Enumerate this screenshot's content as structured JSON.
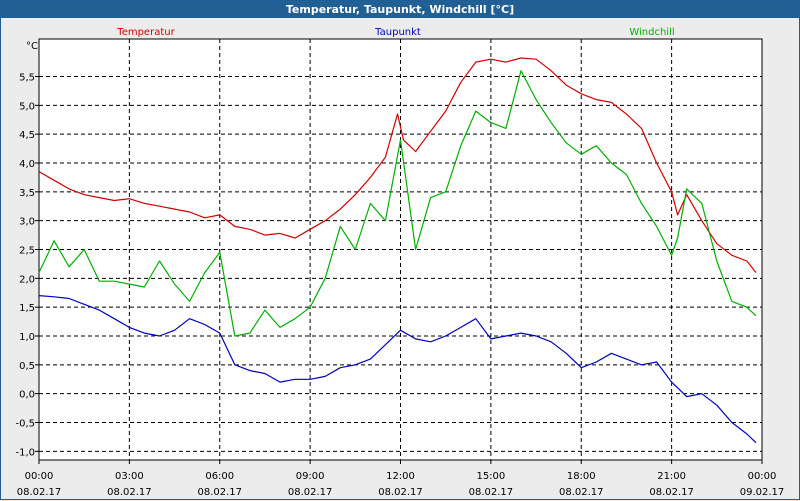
{
  "window": {
    "title": "Temperatur, Taupunkt, Windchill [°C]"
  },
  "colors": {
    "Temperatur": "#d40000",
    "Taupunkt": "#0000c0",
    "Windchill": "#00b000",
    "grid": "#000000",
    "background": "#ececec"
  },
  "chart_data": {
    "type": "line",
    "title": "Temperatur, Taupunkt, Windchill [°C]",
    "ylabel": "°C",
    "ylim": [
      -1.15,
      6.15
    ],
    "xlim": [
      0,
      24
    ],
    "grid": true,
    "legend_position": "top",
    "y_ticks": [
      "-1,0",
      "-0,5",
      "0,0",
      "0,5",
      "1,0",
      "1,5",
      "2,0",
      "2,5",
      "3,0",
      "3,5",
      "4,0",
      "4,5",
      "5,0",
      "5,5"
    ],
    "x_ticks": [
      {
        "time": "00:00",
        "date": "08.02.17"
      },
      {
        "time": "03:00",
        "date": "08.02.17"
      },
      {
        "time": "06:00",
        "date": "08.02.17"
      },
      {
        "time": "09:00",
        "date": "08.02.17"
      },
      {
        "time": "12:00",
        "date": "08.02.17"
      },
      {
        "time": "15:00",
        "date": "08.02.17"
      },
      {
        "time": "18:00",
        "date": "08.02.17"
      },
      {
        "time": "21:00",
        "date": "08.02.17"
      },
      {
        "time": "00:00",
        "date": "09.02.17"
      }
    ],
    "series": [
      {
        "name": "Temperatur",
        "x": [
          0,
          0.5,
          1,
          1.5,
          2,
          2.5,
          3,
          3.5,
          4,
          4.5,
          5,
          5.5,
          6,
          6.5,
          7,
          7.5,
          8,
          8.5,
          9,
          9.5,
          10,
          10.5,
          11,
          11.5,
          11.9,
          12.1,
          12.5,
          13,
          13.5,
          14,
          14.5,
          15,
          15.5,
          16,
          16.5,
          17,
          17.5,
          18,
          18.5,
          19,
          19.5,
          20,
          20.5,
          21,
          21.2,
          21.5,
          22,
          22.5,
          23,
          23.5,
          23.8
        ],
        "y": [
          3.85,
          3.7,
          3.55,
          3.45,
          3.4,
          3.35,
          3.38,
          3.3,
          3.25,
          3.2,
          3.15,
          3.05,
          3.1,
          2.9,
          2.85,
          2.75,
          2.78,
          2.7,
          2.85,
          3.0,
          3.2,
          3.45,
          3.75,
          4.1,
          4.85,
          4.4,
          4.2,
          4.55,
          4.9,
          5.4,
          5.75,
          5.8,
          5.75,
          5.82,
          5.8,
          5.6,
          5.35,
          5.2,
          5.1,
          5.05,
          4.85,
          4.6,
          4.0,
          3.5,
          3.1,
          3.45,
          3.0,
          2.6,
          2.4,
          2.3,
          2.1
        ]
      },
      {
        "name": "Taupunkt",
        "x": [
          0,
          0.5,
          1,
          1.5,
          2,
          2.5,
          3,
          3.5,
          4,
          4.5,
          5,
          5.5,
          6,
          6.5,
          7,
          7.5,
          8,
          8.5,
          9,
          9.5,
          10,
          10.5,
          11,
          11.5,
          12,
          12.5,
          13,
          13.5,
          14,
          14.5,
          15,
          15.5,
          16,
          16.5,
          17,
          17.5,
          18,
          18.5,
          19,
          19.5,
          20,
          20.5,
          21,
          21.5,
          22,
          22.5,
          23,
          23.5,
          23.8
        ],
        "y": [
          1.7,
          1.68,
          1.65,
          1.55,
          1.45,
          1.3,
          1.15,
          1.05,
          1.0,
          1.1,
          1.3,
          1.2,
          1.05,
          0.5,
          0.4,
          0.35,
          0.2,
          0.25,
          0.25,
          0.3,
          0.45,
          0.5,
          0.6,
          0.85,
          1.1,
          0.95,
          0.9,
          1.0,
          1.15,
          1.3,
          0.95,
          1.0,
          1.05,
          1.0,
          0.9,
          0.7,
          0.45,
          0.55,
          0.7,
          0.6,
          0.5,
          0.55,
          0.2,
          -0.05,
          0.0,
          -0.2,
          -0.5,
          -0.7,
          -0.85
        ]
      },
      {
        "name": "Windchill",
        "x": [
          0,
          0.5,
          1,
          1.5,
          2,
          2.5,
          3,
          3.5,
          4,
          4.5,
          5,
          5.5,
          6,
          6.5,
          7,
          7.5,
          8,
          8.5,
          9,
          9.5,
          10,
          10.5,
          11,
          11.5,
          12,
          12.5,
          13,
          13.5,
          14,
          14.5,
          15,
          15.5,
          16,
          16.5,
          17,
          17.5,
          18,
          18.5,
          19,
          19.5,
          20,
          20.5,
          21,
          21.2,
          21.5,
          22,
          22.5,
          23,
          23.5,
          23.8
        ],
        "y": [
          2.1,
          2.65,
          2.2,
          2.5,
          1.95,
          1.95,
          1.9,
          1.85,
          2.3,
          1.9,
          1.6,
          2.1,
          2.45,
          1.0,
          1.05,
          1.45,
          1.15,
          1.3,
          1.5,
          2.0,
          2.9,
          2.5,
          3.3,
          3.0,
          4.4,
          2.5,
          3.4,
          3.5,
          4.3,
          4.9,
          4.7,
          4.6,
          5.6,
          5.1,
          4.7,
          4.35,
          4.15,
          4.3,
          4.0,
          3.8,
          3.3,
          2.9,
          2.4,
          2.7,
          3.55,
          3.3,
          2.3,
          1.6,
          1.5,
          1.35
        ]
      }
    ]
  }
}
